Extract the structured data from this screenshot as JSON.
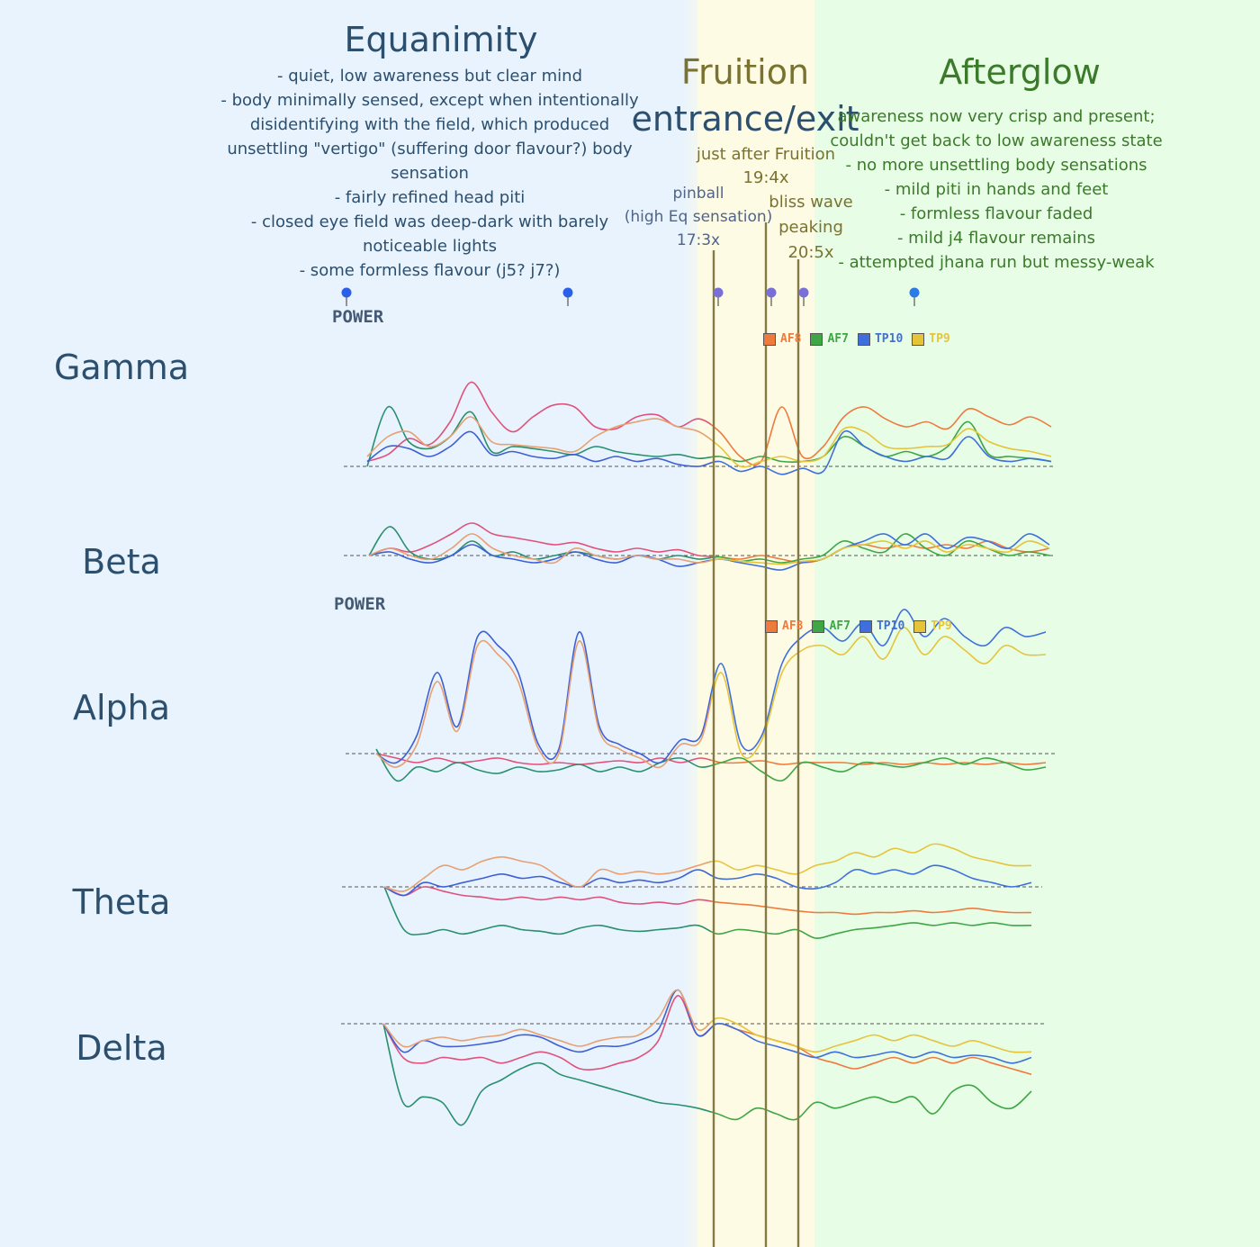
{
  "colors": {
    "equanimity_bg": "#e8f3fd",
    "fruition_bg": "#fefbe4",
    "afterglow_bg": "#e8fde6",
    "AF8": "#ef7a3d",
    "AF7": "#3fa646",
    "TP10": "#3e6fdc",
    "TP9": "#e6c43a",
    "equanimity_text": "#2c4f6e",
    "fruition_text": "#7a7230",
    "afterglow_text": "#3a7a2a",
    "marker_line": "#857a45"
  },
  "phases": {
    "equanimity": {
      "title": "Equanimity",
      "notes": [
        "- quiet, low awareness but clear mind",
        "- body minimally sensed, except when intentionally",
        "disidentifying with the field, which produced",
        "unsettling \"vertigo\" (suffering door flavour?) body",
        "sensation",
        "- fairly refined head piti",
        "- closed eye field was deep-dark with barely",
        "noticeable lights",
        "- some formless flavour (j5? j7?)"
      ]
    },
    "fruition": {
      "title_line1": "Fruition",
      "title_line2": "entrance/exit"
    },
    "afterglow": {
      "title": "Afterglow",
      "notes": [
        "awareness now very crisp and present;",
        "couldn't get back to low awareness state",
        "- no more unsettling body sensations",
        "- mild piti in hands and feet",
        "- formless flavour faded",
        "- mild j4 flavour remains",
        "- attempted jhana run but messy-weak"
      ]
    }
  },
  "annotations": {
    "pinball": [
      "pinball",
      "(high Eq sensation)",
      "17:3x"
    ],
    "just_after": [
      "just after Fruition",
      "19:4x"
    ],
    "bliss": [
      "bliss wave",
      "peaking",
      "20:5x"
    ]
  },
  "power_label": "POWER",
  "legend": [
    "AF8",
    "AF7",
    "TP10",
    "TP9"
  ],
  "bands": [
    "Gamma",
    "Beta",
    "Alpha",
    "Theta",
    "Delta"
  ],
  "chart_data": {
    "type": "line",
    "x_unit": "minutes (approx.)",
    "x_range": [
      0,
      22
    ],
    "event_markers": [
      {
        "label": "17:3x",
        "x": 17.3
      },
      {
        "label": "19:4x",
        "x": 19.4
      },
      {
        "label": "20:5x",
        "x": 20.5
      }
    ],
    "phase_ranges": {
      "equanimity": [
        0,
        16.8
      ],
      "fruition": [
        16.8,
        21.0
      ],
      "afterglow": [
        21.0,
        30.0
      ]
    },
    "bands": [
      {
        "name": "Gamma",
        "series": [
          {
            "name": "AF8",
            "values": [
              0.05,
              0.12,
              0.28,
              0.22,
              0.45,
              0.85,
              0.55,
              0.35,
              0.5,
              0.62,
              0.6,
              0.4,
              0.38,
              0.5,
              0.52,
              0.4,
              0.48,
              0.35,
              0.1,
              0.05,
              0.6,
              0.1,
              0.2,
              0.5,
              0.6,
              0.48,
              0.4,
              0.45,
              0.38,
              0.58,
              0.5,
              0.42,
              0.5,
              0.4
            ]
          },
          {
            "name": "AF7",
            "values": [
              0.0,
              0.6,
              0.25,
              0.18,
              0.3,
              0.55,
              0.15,
              0.2,
              0.18,
              0.15,
              0.12,
              0.2,
              0.15,
              0.12,
              0.1,
              0.12,
              0.08,
              0.1,
              0.05,
              0.1,
              0.05,
              0.05,
              0.1,
              0.3,
              0.2,
              0.1,
              0.15,
              0.1,
              0.2,
              0.45,
              0.12,
              0.1,
              0.08,
              0.05
            ]
          },
          {
            "name": "TP10",
            "values": [
              0.05,
              0.2,
              0.18,
              0.1,
              0.2,
              0.35,
              0.12,
              0.15,
              0.1,
              0.08,
              0.12,
              0.05,
              0.1,
              0.05,
              0.08,
              0.02,
              0.0,
              0.05,
              -0.05,
              0.0,
              -0.08,
              -0.02,
              -0.05,
              0.35,
              0.2,
              0.1,
              0.05,
              0.1,
              0.08,
              0.3,
              0.1,
              0.05,
              0.08,
              0.05
            ]
          },
          {
            "name": "TP9",
            "values": [
              0.1,
              0.3,
              0.35,
              0.2,
              0.3,
              0.5,
              0.25,
              0.22,
              0.2,
              0.18,
              0.15,
              0.3,
              0.4,
              0.45,
              0.48,
              0.4,
              0.35,
              0.2,
              0.0,
              0.05,
              0.1,
              0.05,
              0.1,
              0.38,
              0.35,
              0.2,
              0.18,
              0.2,
              0.22,
              0.38,
              0.25,
              0.18,
              0.15,
              0.1
            ]
          }
        ]
      },
      {
        "name": "Beta",
        "series": [
          {
            "name": "AF8",
            "values": [
              0.0,
              0.1,
              0.05,
              0.15,
              0.3,
              0.45,
              0.3,
              0.25,
              0.2,
              0.15,
              0.18,
              0.1,
              0.05,
              0.1,
              0.05,
              0.08,
              0.0,
              -0.02,
              -0.05,
              0.0,
              -0.05,
              -0.1,
              -0.05,
              0.1,
              0.15,
              0.1,
              0.15,
              0.1,
              0.15,
              0.1,
              0.2,
              0.1,
              0.05,
              0.1
            ]
          },
          {
            "name": "AF7",
            "values": [
              0.0,
              0.4,
              0.05,
              -0.05,
              0.0,
              0.2,
              0.0,
              0.05,
              -0.05,
              0.0,
              0.05,
              0.0,
              -0.05,
              0.0,
              -0.05,
              0.0,
              -0.05,
              -0.02,
              -0.08,
              -0.05,
              -0.1,
              -0.05,
              0.0,
              0.2,
              0.1,
              0.05,
              0.3,
              0.1,
              0.0,
              0.2,
              0.1,
              0.0,
              0.05,
              0.0
            ]
          },
          {
            "name": "TP10",
            "values": [
              0.0,
              0.05,
              -0.05,
              -0.1,
              0.0,
              0.15,
              0.0,
              -0.05,
              -0.1,
              -0.05,
              0.05,
              -0.05,
              -0.1,
              0.0,
              -0.05,
              -0.15,
              -0.1,
              -0.05,
              -0.1,
              -0.15,
              -0.2,
              -0.1,
              -0.05,
              0.1,
              0.2,
              0.3,
              0.15,
              0.3,
              0.1,
              0.25,
              0.2,
              0.1,
              0.3,
              0.15
            ]
          },
          {
            "name": "TP9",
            "values": [
              0.0,
              0.1,
              0.0,
              -0.05,
              0.1,
              0.3,
              0.1,
              0.0,
              -0.05,
              -0.1,
              0.1,
              0.0,
              -0.05,
              0.0,
              -0.05,
              -0.05,
              -0.1,
              -0.05,
              -0.08,
              -0.1,
              -0.12,
              -0.08,
              -0.05,
              0.1,
              0.15,
              0.2,
              0.1,
              0.2,
              0.05,
              0.15,
              0.1,
              0.05,
              0.2,
              0.1
            ]
          }
        ]
      },
      {
        "name": "Alpha",
        "series": [
          {
            "name": "AF8",
            "values": [
              0.0,
              -0.05,
              -0.1,
              -0.05,
              -0.1,
              -0.08,
              -0.05,
              -0.1,
              -0.12,
              -0.1,
              -0.12,
              -0.1,
              -0.08,
              -0.1,
              -0.05,
              -0.1,
              -0.05,
              -0.1,
              -0.1,
              -0.08,
              -0.12,
              -0.1,
              -0.1,
              -0.1,
              -0.12,
              -0.1,
              -0.12,
              -0.1,
              -0.12,
              -0.1,
              -0.12,
              -0.1,
              -0.12,
              -0.1
            ]
          },
          {
            "name": "AF7",
            "values": [
              0.05,
              -0.3,
              -0.15,
              -0.2,
              -0.1,
              -0.18,
              -0.22,
              -0.15,
              -0.2,
              -0.18,
              -0.12,
              -0.2,
              -0.15,
              -0.2,
              -0.1,
              -0.05,
              -0.15,
              -0.1,
              -0.05,
              -0.2,
              -0.3,
              -0.1,
              -0.15,
              -0.2,
              -0.1,
              -0.12,
              -0.15,
              -0.1,
              -0.05,
              -0.12,
              -0.05,
              -0.1,
              -0.18,
              -0.15
            ]
          },
          {
            "name": "TP10",
            "values": [
              0.0,
              -0.1,
              0.2,
              0.9,
              0.3,
              1.3,
              1.2,
              0.9,
              0.1,
              0.05,
              1.35,
              0.3,
              0.1,
              0.0,
              -0.1,
              0.15,
              0.2,
              1.0,
              0.1,
              0.2,
              1.0,
              1.3,
              1.4,
              1.25,
              1.45,
              1.2,
              1.6,
              1.3,
              1.5,
              1.3,
              1.2,
              1.4,
              1.3,
              1.35
            ]
          },
          {
            "name": "TP9",
            "values": [
              0.0,
              -0.15,
              0.1,
              0.8,
              0.25,
              1.2,
              1.1,
              0.8,
              0.05,
              0.0,
              1.25,
              0.25,
              0.05,
              -0.05,
              -0.15,
              0.1,
              0.15,
              0.9,
              0.0,
              0.15,
              0.9,
              1.15,
              1.2,
              1.1,
              1.3,
              1.05,
              1.4,
              1.1,
              1.3,
              1.15,
              1.0,
              1.2,
              1.1,
              1.1
            ]
          }
        ]
      },
      {
        "name": "Theta",
        "series": [
          {
            "name": "AF8",
            "values": [
              0.0,
              -0.1,
              0.0,
              -0.05,
              -0.1,
              -0.12,
              -0.15,
              -0.12,
              -0.15,
              -0.12,
              -0.15,
              -0.12,
              -0.18,
              -0.2,
              -0.18,
              -0.2,
              -0.15,
              -0.18,
              -0.2,
              -0.22,
              -0.25,
              -0.28,
              -0.3,
              -0.3,
              -0.32,
              -0.3,
              -0.3,
              -0.28,
              -0.3,
              -0.28,
              -0.25,
              -0.28,
              -0.3,
              -0.3
            ]
          },
          {
            "name": "AF7",
            "values": [
              0.0,
              -0.5,
              -0.55,
              -0.5,
              -0.55,
              -0.5,
              -0.45,
              -0.5,
              -0.52,
              -0.55,
              -0.48,
              -0.45,
              -0.5,
              -0.52,
              -0.5,
              -0.48,
              -0.45,
              -0.55,
              -0.5,
              -0.52,
              -0.55,
              -0.5,
              -0.6,
              -0.55,
              -0.5,
              -0.48,
              -0.45,
              -0.42,
              -0.45,
              -0.42,
              -0.45,
              -0.42,
              -0.45,
              -0.45
            ]
          },
          {
            "name": "TP10",
            "values": [
              0.0,
              -0.1,
              0.05,
              0.0,
              0.05,
              0.1,
              0.15,
              0.1,
              0.12,
              0.05,
              0.0,
              0.1,
              0.05,
              0.08,
              0.05,
              0.1,
              0.2,
              0.1,
              0.1,
              0.15,
              0.1,
              0.0,
              -0.02,
              0.05,
              0.2,
              0.15,
              0.2,
              0.15,
              0.25,
              0.2,
              0.1,
              0.05,
              0.0,
              0.05
            ]
          },
          {
            "name": "TP9",
            "values": [
              0.0,
              -0.05,
              0.1,
              0.25,
              0.2,
              0.3,
              0.35,
              0.3,
              0.25,
              0.1,
              0.0,
              0.2,
              0.15,
              0.18,
              0.15,
              0.18,
              0.25,
              0.3,
              0.2,
              0.25,
              0.2,
              0.15,
              0.25,
              0.3,
              0.4,
              0.35,
              0.45,
              0.4,
              0.5,
              0.45,
              0.35,
              0.3,
              0.25,
              0.25
            ]
          }
        ]
      },
      {
        "name": "Delta",
        "series": [
          {
            "name": "AF8",
            "values": [
              0.0,
              -0.3,
              -0.35,
              -0.3,
              -0.32,
              -0.3,
              -0.35,
              -0.3,
              -0.25,
              -0.3,
              -0.4,
              -0.4,
              -0.35,
              -0.3,
              -0.15,
              0.25,
              -0.1,
              0.0,
              -0.05,
              -0.1,
              -0.15,
              -0.2,
              -0.3,
              -0.35,
              -0.4,
              -0.35,
              -0.3,
              -0.35,
              -0.3,
              -0.35,
              -0.3,
              -0.35,
              -0.4,
              -0.45
            ]
          },
          {
            "name": "AF7",
            "values": [
              0.0,
              -0.7,
              -0.65,
              -0.7,
              -0.9,
              -0.6,
              -0.5,
              -0.4,
              -0.35,
              -0.45,
              -0.5,
              -0.55,
              -0.6,
              -0.65,
              -0.7,
              -0.72,
              -0.75,
              -0.8,
              -0.85,
              -0.75,
              -0.8,
              -0.85,
              -0.7,
              -0.75,
              -0.7,
              -0.65,
              -0.7,
              -0.65,
              -0.8,
              -0.6,
              -0.55,
              -0.7,
              -0.75,
              -0.6
            ]
          },
          {
            "name": "TP10",
            "values": [
              0.0,
              -0.25,
              -0.15,
              -0.2,
              -0.2,
              -0.18,
              -0.15,
              -0.1,
              -0.12,
              -0.2,
              -0.25,
              -0.2,
              -0.2,
              -0.15,
              -0.05,
              0.3,
              -0.1,
              0.0,
              -0.05,
              -0.15,
              -0.2,
              -0.25,
              -0.3,
              -0.25,
              -0.3,
              -0.28,
              -0.25,
              -0.3,
              -0.25,
              -0.3,
              -0.28,
              -0.3,
              -0.35,
              -0.3
            ]
          },
          {
            "name": "TP9",
            "values": [
              0.0,
              -0.2,
              -0.15,
              -0.12,
              -0.15,
              -0.12,
              -0.1,
              -0.05,
              -0.1,
              -0.15,
              -0.2,
              -0.15,
              -0.12,
              -0.1,
              0.05,
              0.3,
              -0.05,
              0.05,
              0.0,
              -0.1,
              -0.15,
              -0.2,
              -0.25,
              -0.2,
              -0.15,
              -0.1,
              -0.15,
              -0.1,
              -0.15,
              -0.2,
              -0.15,
              -0.2,
              -0.25,
              -0.25
            ]
          }
        ]
      }
    ]
  }
}
